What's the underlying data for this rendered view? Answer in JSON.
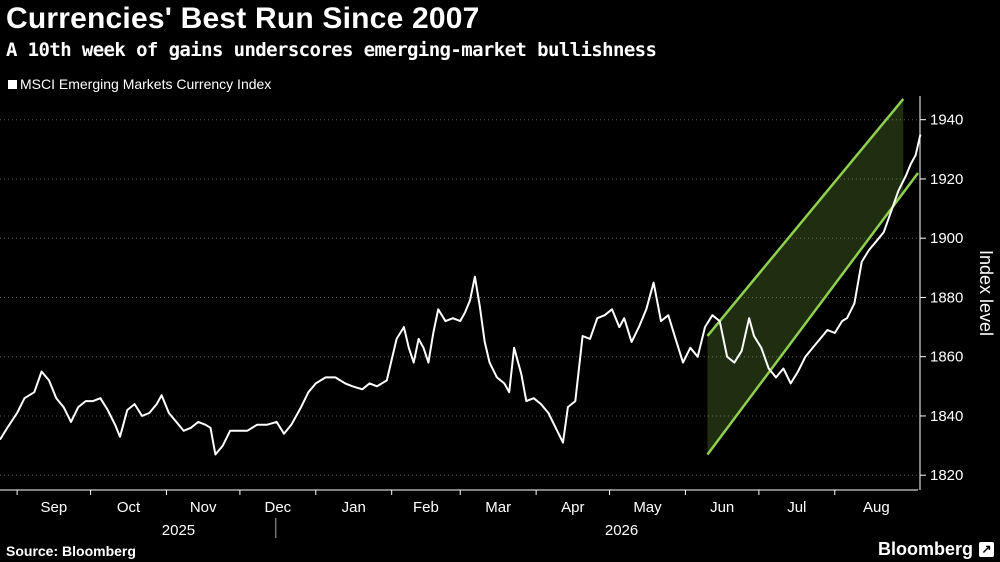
{
  "header": {
    "title": "Currencies' Best Run Since 2007",
    "subtitle": "A 10th week of gains underscores emerging-market bullishness"
  },
  "legend": {
    "label": "MSCI Emerging Markets Currency Index"
  },
  "footer": {
    "source": "Source: Bloomberg",
    "brand": "Bloomberg",
    "brand_icon": "bloomberg-terminal-icon"
  },
  "chart_data": {
    "type": "line",
    "title": "Currencies' Best Run Since 2007",
    "ylabel": "Index level",
    "ylim": [
      1815,
      1948
    ],
    "yticks": [
      1820,
      1840,
      1860,
      1880,
      1900,
      1920,
      1940
    ],
    "x_start": "2025-08-25",
    "x_end": "2026-09-04",
    "month_ticks": [
      {
        "label": "Sep",
        "date": "2025-09-01"
      },
      {
        "label": "Oct",
        "date": "2025-10-01"
      },
      {
        "label": "Nov",
        "date": "2025-11-01"
      },
      {
        "label": "Dec",
        "date": "2025-12-01"
      },
      {
        "label": "Jan",
        "date": "2026-01-01"
      },
      {
        "label": "Feb",
        "date": "2026-02-01"
      },
      {
        "label": "Mar",
        "date": "2026-03-01"
      },
      {
        "label": "Apr",
        "date": "2026-04-01"
      },
      {
        "label": "May",
        "date": "2026-05-01"
      },
      {
        "label": "Jun",
        "date": "2026-06-01"
      },
      {
        "label": "Jul",
        "date": "2026-07-01"
      },
      {
        "label": "Aug",
        "date": "2026-08-01"
      }
    ],
    "years": [
      {
        "label": "2025",
        "date": "2025-11-01"
      },
      {
        "label": "2026",
        "date": "2026-05-01"
      }
    ],
    "year_divider": "2026-01-01",
    "channel": {
      "color": "#8fd14f",
      "upper": [
        [
          "2026-06-10",
          1867
        ],
        [
          "2026-08-29",
          1947
        ]
      ],
      "lower": [
        [
          "2026-06-10",
          1827
        ],
        [
          "2026-09-04",
          1922
        ]
      ]
    },
    "series": [
      {
        "color": "#ffffff",
        "points": [
          [
            "2025-08-25",
            1832
          ],
          [
            "2025-08-28",
            1836
          ],
          [
            "2025-09-01",
            1841
          ],
          [
            "2025-09-04",
            1846
          ],
          [
            "2025-09-08",
            1848
          ],
          [
            "2025-09-11",
            1855
          ],
          [
            "2025-09-14",
            1852
          ],
          [
            "2025-09-17",
            1846
          ],
          [
            "2025-09-20",
            1843
          ],
          [
            "2025-09-23",
            1838
          ],
          [
            "2025-09-26",
            1843
          ],
          [
            "2025-09-29",
            1845
          ],
          [
            "2025-10-02",
            1845
          ],
          [
            "2025-10-05",
            1846
          ],
          [
            "2025-10-08",
            1842
          ],
          [
            "2025-10-11",
            1837
          ],
          [
            "2025-10-13",
            1833
          ],
          [
            "2025-10-16",
            1842
          ],
          [
            "2025-10-19",
            1844
          ],
          [
            "2025-10-22",
            1840
          ],
          [
            "2025-10-25",
            1841
          ],
          [
            "2025-10-28",
            1844
          ],
          [
            "2025-10-30",
            1847
          ],
          [
            "2025-11-02",
            1841
          ],
          [
            "2025-11-05",
            1838
          ],
          [
            "2025-11-08",
            1835
          ],
          [
            "2025-11-11",
            1836
          ],
          [
            "2025-11-14",
            1838
          ],
          [
            "2025-11-17",
            1837
          ],
          [
            "2025-11-19",
            1836
          ],
          [
            "2025-11-21",
            1827
          ],
          [
            "2025-11-24",
            1830
          ],
          [
            "2025-11-27",
            1835
          ],
          [
            "2025-12-01",
            1835
          ],
          [
            "2025-12-04",
            1835
          ],
          [
            "2025-12-08",
            1837
          ],
          [
            "2025-12-12",
            1837
          ],
          [
            "2025-12-16",
            1838
          ],
          [
            "2025-12-19",
            1834
          ],
          [
            "2025-12-22",
            1837
          ],
          [
            "2025-12-26",
            1843
          ],
          [
            "2025-12-29",
            1848
          ],
          [
            "2026-01-01",
            1851
          ],
          [
            "2026-01-05",
            1853
          ],
          [
            "2026-01-09",
            1853
          ],
          [
            "2026-01-13",
            1851
          ],
          [
            "2026-01-16",
            1850
          ],
          [
            "2026-01-20",
            1849
          ],
          [
            "2026-01-23",
            1851
          ],
          [
            "2026-01-26",
            1850
          ],
          [
            "2026-01-30",
            1852
          ],
          [
            "2026-02-03",
            1866
          ],
          [
            "2026-02-06",
            1870
          ],
          [
            "2026-02-08",
            1863
          ],
          [
            "2026-02-10",
            1858
          ],
          [
            "2026-02-12",
            1866
          ],
          [
            "2026-02-14",
            1863
          ],
          [
            "2026-02-16",
            1858
          ],
          [
            "2026-02-18",
            1868
          ],
          [
            "2026-02-20",
            1876
          ],
          [
            "2026-02-23",
            1872
          ],
          [
            "2026-02-26",
            1873
          ],
          [
            "2026-03-01",
            1872
          ],
          [
            "2026-03-03",
            1875
          ],
          [
            "2026-03-05",
            1879
          ],
          [
            "2026-03-07",
            1887
          ],
          [
            "2026-03-09",
            1877
          ],
          [
            "2026-03-11",
            1865
          ],
          [
            "2026-03-13",
            1858
          ],
          [
            "2026-03-16",
            1853
          ],
          [
            "2026-03-19",
            1851
          ],
          [
            "2026-03-21",
            1848
          ],
          [
            "2026-03-23",
            1863
          ],
          [
            "2026-03-26",
            1854
          ],
          [
            "2026-03-28",
            1845
          ],
          [
            "2026-03-31",
            1846
          ],
          [
            "2026-04-03",
            1844
          ],
          [
            "2026-04-06",
            1841
          ],
          [
            "2026-04-09",
            1836
          ],
          [
            "2026-04-12",
            1831
          ],
          [
            "2026-04-14",
            1843
          ],
          [
            "2026-04-17",
            1845
          ],
          [
            "2026-04-20",
            1867
          ],
          [
            "2026-04-23",
            1866
          ],
          [
            "2026-04-26",
            1873
          ],
          [
            "2026-04-29",
            1874
          ],
          [
            "2026-05-02",
            1876
          ],
          [
            "2026-05-05",
            1870
          ],
          [
            "2026-05-07",
            1873
          ],
          [
            "2026-05-10",
            1865
          ],
          [
            "2026-05-13",
            1870
          ],
          [
            "2026-05-16",
            1876
          ],
          [
            "2026-05-19",
            1885
          ],
          [
            "2026-05-22",
            1872
          ],
          [
            "2026-05-25",
            1874
          ],
          [
            "2026-05-28",
            1866
          ],
          [
            "2026-05-31",
            1858
          ],
          [
            "2026-06-03",
            1863
          ],
          [
            "2026-06-06",
            1860
          ],
          [
            "2026-06-09",
            1870
          ],
          [
            "2026-06-12",
            1874
          ],
          [
            "2026-06-15",
            1872
          ],
          [
            "2026-06-18",
            1860
          ],
          [
            "2026-06-21",
            1858
          ],
          [
            "2026-06-24",
            1862
          ],
          [
            "2026-06-27",
            1873
          ],
          [
            "2026-06-29",
            1867
          ],
          [
            "2026-07-02",
            1863
          ],
          [
            "2026-07-05",
            1856
          ],
          [
            "2026-07-08",
            1853
          ],
          [
            "2026-07-11",
            1856
          ],
          [
            "2026-07-14",
            1851
          ],
          [
            "2026-07-17",
            1855
          ],
          [
            "2026-07-20",
            1860
          ],
          [
            "2026-07-23",
            1863
          ],
          [
            "2026-07-26",
            1866
          ],
          [
            "2026-07-29",
            1869
          ],
          [
            "2026-08-01",
            1868
          ],
          [
            "2026-08-04",
            1872
          ],
          [
            "2026-08-06",
            1873
          ],
          [
            "2026-08-09",
            1878
          ],
          [
            "2026-08-12",
            1892
          ],
          [
            "2026-08-15",
            1896
          ],
          [
            "2026-08-18",
            1899
          ],
          [
            "2026-08-21",
            1902
          ],
          [
            "2026-08-24",
            1909
          ],
          [
            "2026-08-27",
            1916
          ],
          [
            "2026-08-30",
            1921
          ],
          [
            "2026-09-01",
            1925
          ],
          [
            "2026-09-03",
            1928
          ],
          [
            "2026-09-05",
            1935
          ]
        ]
      }
    ]
  }
}
